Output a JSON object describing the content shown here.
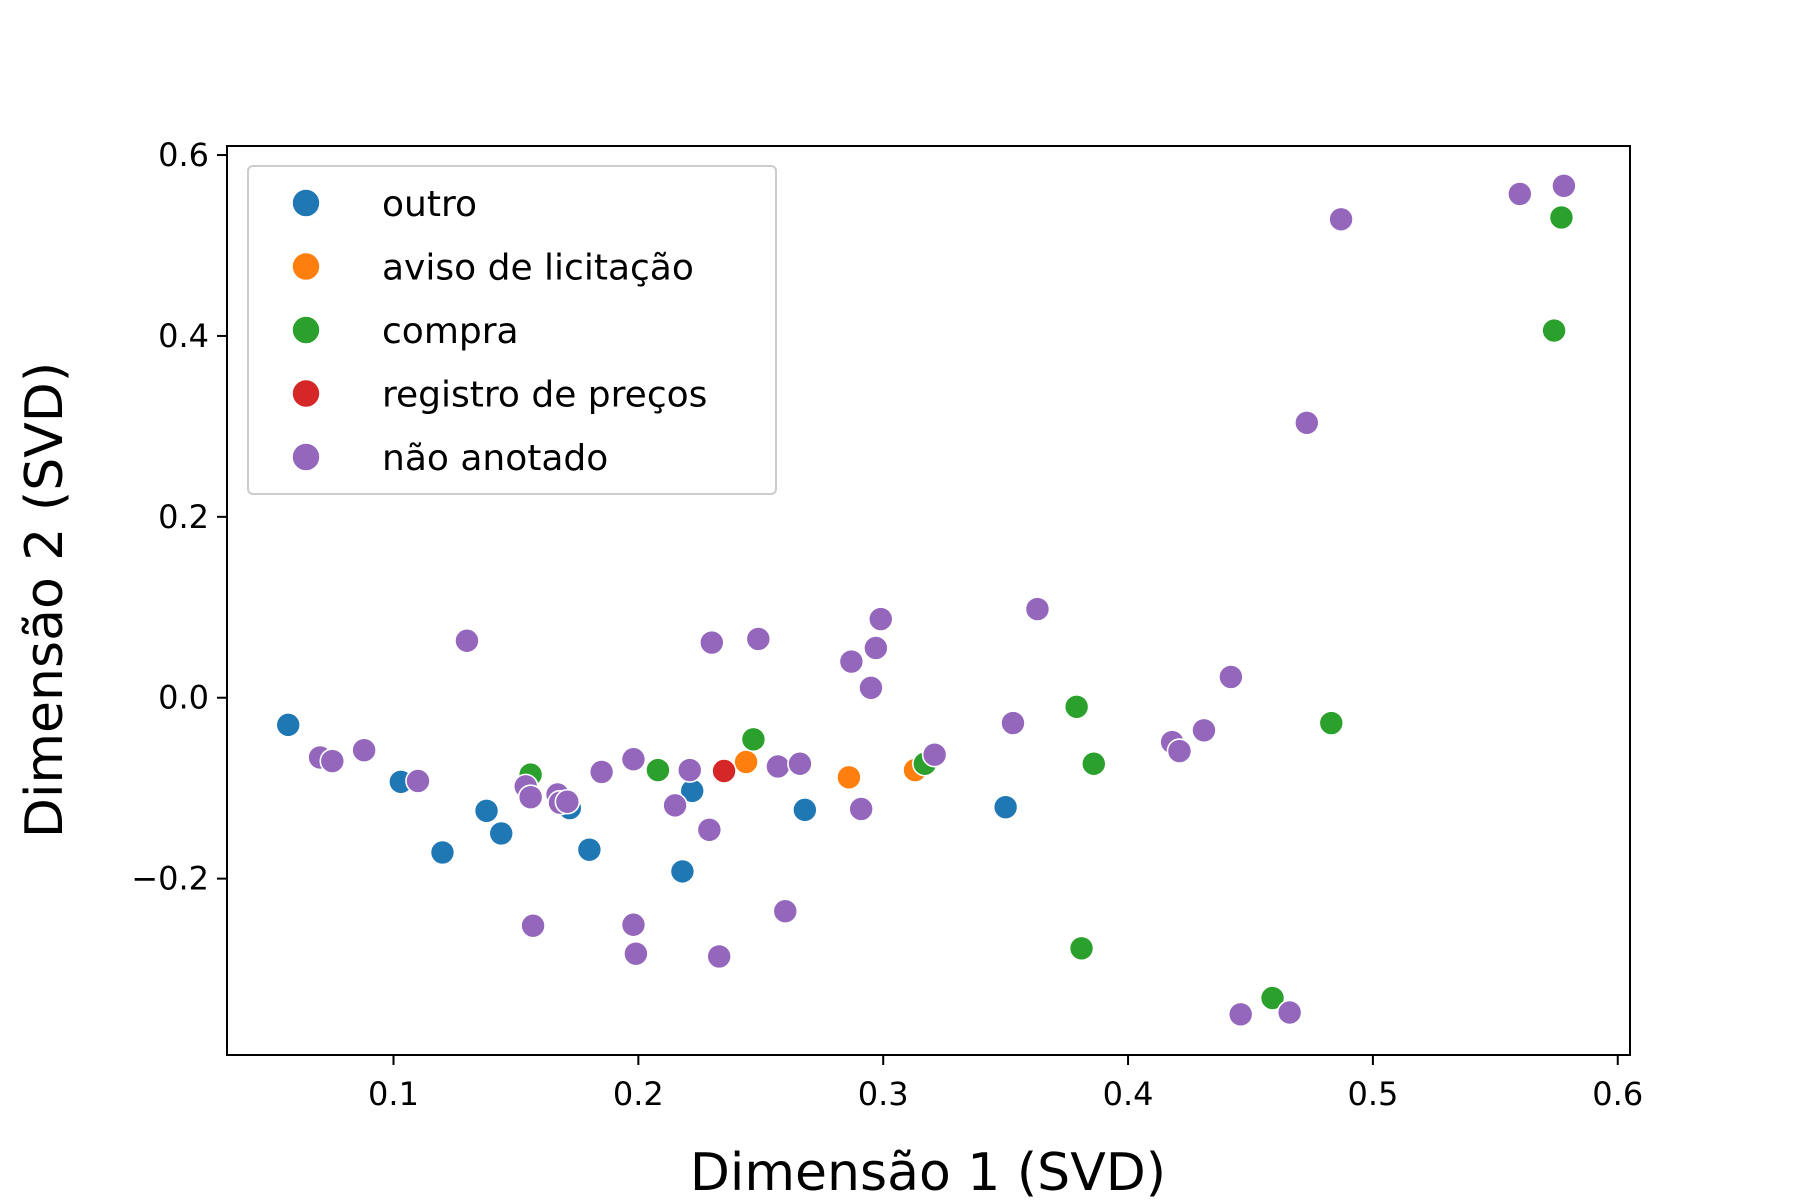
{
  "chart_data": {
    "type": "scatter",
    "title": "",
    "xlabel": "Dimensão 1 (SVD)",
    "ylabel": "Dimensão 2 (SVD)",
    "xlim": [
      0.032,
      0.605
    ],
    "ylim": [
      -0.395,
      0.61
    ],
    "xticks": [
      {
        "value": 0.1,
        "label": "0.1"
      },
      {
        "value": 0.2,
        "label": "0.2"
      },
      {
        "value": 0.3,
        "label": "0.3"
      },
      {
        "value": 0.4,
        "label": "0.4"
      },
      {
        "value": 0.5,
        "label": "0.5"
      },
      {
        "value": 0.6,
        "label": "0.6"
      }
    ],
    "yticks": [
      {
        "value": -0.2,
        "label": "−0.2"
      },
      {
        "value": 0.0,
        "label": "0.0"
      },
      {
        "value": 0.2,
        "label": "0.2"
      },
      {
        "value": 0.4,
        "label": "0.4"
      },
      {
        "value": 0.6,
        "label": "0.6"
      }
    ],
    "grid": false,
    "legend_position": "top-left",
    "series": [
      {
        "name": "outro",
        "color": "#1f77b4",
        "points": [
          [
            0.057,
            -0.03
          ],
          [
            0.103,
            -0.093
          ],
          [
            0.12,
            -0.171
          ],
          [
            0.138,
            -0.125
          ],
          [
            0.144,
            -0.15
          ],
          [
            0.172,
            -0.122
          ],
          [
            0.18,
            -0.168
          ],
          [
            0.218,
            -0.192
          ],
          [
            0.222,
            -0.103
          ],
          [
            0.268,
            -0.124
          ],
          [
            0.35,
            -0.121
          ]
        ]
      },
      {
        "name": "aviso de licitação",
        "color": "#ff7f0e",
        "points": [
          [
            0.244,
            -0.071
          ],
          [
            0.286,
            -0.088
          ],
          [
            0.313,
            -0.08
          ]
        ]
      },
      {
        "name": "compra",
        "color": "#2ca02c",
        "points": [
          [
            0.156,
            -0.085
          ],
          [
            0.208,
            -0.08
          ],
          [
            0.247,
            -0.046
          ],
          [
            0.317,
            -0.073
          ],
          [
            0.379,
            -0.01
          ],
          [
            0.381,
            -0.277
          ],
          [
            0.386,
            -0.073
          ],
          [
            0.459,
            -0.332
          ],
          [
            0.483,
            -0.028
          ],
          [
            0.574,
            0.406
          ],
          [
            0.577,
            0.531
          ]
        ]
      },
      {
        "name": "registro de preços",
        "color": "#d62728",
        "points": [
          [
            0.235,
            -0.081
          ]
        ]
      },
      {
        "name": "não anotado",
        "color": "#9467bd",
        "points": [
          [
            0.07,
            -0.066
          ],
          [
            0.075,
            -0.07
          ],
          [
            0.088,
            -0.058
          ],
          [
            0.11,
            -0.092
          ],
          [
            0.13,
            0.063
          ],
          [
            0.154,
            -0.098
          ],
          [
            0.156,
            -0.11
          ],
          [
            0.157,
            -0.252
          ],
          [
            0.167,
            -0.107
          ],
          [
            0.168,
            -0.116
          ],
          [
            0.171,
            -0.115
          ],
          [
            0.185,
            -0.082
          ],
          [
            0.198,
            -0.068
          ],
          [
            0.198,
            -0.251
          ],
          [
            0.199,
            -0.283
          ],
          [
            0.215,
            -0.119
          ],
          [
            0.221,
            -0.08
          ],
          [
            0.229,
            -0.146
          ],
          [
            0.23,
            0.061
          ],
          [
            0.233,
            -0.286
          ],
          [
            0.249,
            0.065
          ],
          [
            0.257,
            -0.076
          ],
          [
            0.26,
            -0.236
          ],
          [
            0.266,
            -0.073
          ],
          [
            0.287,
            0.04
          ],
          [
            0.291,
            -0.123
          ],
          [
            0.295,
            0.011
          ],
          [
            0.297,
            0.055
          ],
          [
            0.299,
            0.087
          ],
          [
            0.321,
            -0.063
          ],
          [
            0.353,
            -0.028
          ],
          [
            0.363,
            0.098
          ],
          [
            0.418,
            -0.049
          ],
          [
            0.421,
            -0.059
          ],
          [
            0.431,
            -0.036
          ],
          [
            0.442,
            0.023
          ],
          [
            0.446,
            -0.35
          ],
          [
            0.466,
            -0.348
          ],
          [
            0.473,
            0.304
          ],
          [
            0.487,
            0.529
          ],
          [
            0.56,
            0.557
          ],
          [
            0.578,
            0.566
          ]
        ]
      }
    ]
  }
}
